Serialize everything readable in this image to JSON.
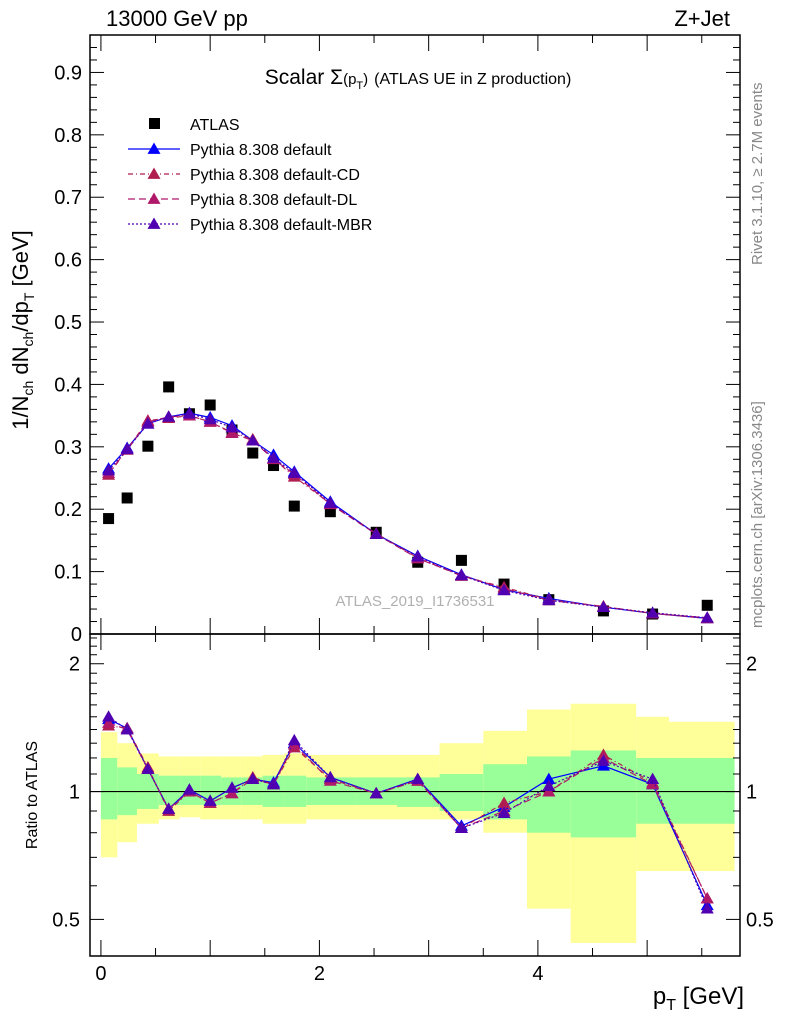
{
  "header": {
    "left": "13000 GeV pp",
    "right": "Z+Jet"
  },
  "side_labels": {
    "rivet": "Rivet 3.1.10, ≥ 2.7M events",
    "mcplots": "mcplots.cern.ch [arXiv:1306.3436]"
  },
  "watermark": "ATLAS_2019_I1736531",
  "colors": {
    "atlas": "#000000",
    "default": "#0000ff",
    "default_cd": "#b01e50",
    "default_dl": "#b0186a",
    "default_mbr": "#5000b0",
    "band_outer": "#ffff99",
    "band_inner": "#99ff99"
  },
  "chart_data": [
    {
      "type": "scatter",
      "panel": "main",
      "title_main": "Scalar Σ",
      "title_sub": "(p",
      "title_subsub": "T",
      "title_close": ")",
      "title_rest": "(ATLAS UE in Z production)",
      "ylabel_1": "1/N",
      "ylabel_2": "ch",
      "ylabel_3": " dN",
      "ylabel_4": "ch",
      "ylabel_5": "/dp",
      "ylabel_6": "T",
      "ylabel_7": " [GeV]",
      "xlim": [
        -0.1,
        5.85
      ],
      "ylim": [
        0,
        0.96
      ],
      "yticks": [
        "0",
        "0.1",
        "0.2",
        "0.3",
        "0.4",
        "0.5",
        "0.6",
        "0.7",
        "0.8",
        "0.9"
      ],
      "legend": [
        "ATLAS",
        "Pythia 8.308 default",
        "Pythia 8.308 default-CD",
        "Pythia 8.308 default-DL",
        "Pythia 8.308 default-MBR"
      ],
      "x": [
        0.07,
        0.24,
        0.43,
        0.62,
        0.81,
        1.0,
        1.2,
        1.39,
        1.58,
        1.77,
        2.1,
        2.52,
        2.9,
        3.3,
        3.69,
        4.1,
        4.6,
        5.05,
        5.55
      ],
      "series": [
        {
          "name": "ATLAS",
          "values": [
            0.185,
            0.218,
            0.301,
            0.396,
            0.353,
            0.367,
            0.327,
            0.29,
            0.27,
            0.205,
            0.196,
            0.163,
            0.115,
            0.118,
            0.08,
            0.055,
            0.037,
            0.032,
            0.046
          ]
        },
        {
          "name": "Pythia 8.308 default",
          "values": [
            0.265,
            0.298,
            0.337,
            0.348,
            0.354,
            0.347,
            0.334,
            0.31,
            0.287,
            0.26,
            0.212,
            0.16,
            0.125,
            0.095,
            0.071,
            0.057,
            0.043,
            0.033,
            0.025
          ]
        },
        {
          "name": "Pythia 8.308 default-CD",
          "values": [
            0.255,
            0.296,
            0.342,
            0.346,
            0.35,
            0.34,
            0.323,
            0.312,
            0.281,
            0.252,
            0.209,
            0.161,
            0.122,
            0.093,
            0.075,
            0.055,
            0.044,
            0.033,
            0.025
          ]
        },
        {
          "name": "Pythia 8.308 default-DL",
          "values": [
            0.258,
            0.295,
            0.34,
            0.348,
            0.35,
            0.34,
            0.322,
            0.31,
            0.28,
            0.256,
            0.208,
            0.16,
            0.121,
            0.094,
            0.073,
            0.054,
            0.044,
            0.033,
            0.026
          ]
        },
        {
          "name": "Pythia 8.308 default-MBR",
          "values": [
            0.262,
            0.296,
            0.337,
            0.348,
            0.353,
            0.344,
            0.331,
            0.31,
            0.282,
            0.258,
            0.21,
            0.16,
            0.124,
            0.094,
            0.07,
            0.054,
            0.043,
            0.034,
            0.026
          ]
        }
      ]
    },
    {
      "type": "line",
      "panel": "ratio",
      "ylabel": "Ratio to ATLAS",
      "xlabel_main": "p",
      "xlabel_sub": "T",
      "xlabel_unit": " [GeV]",
      "log_y": true,
      "ylim": [
        0.41,
        2.35
      ],
      "yticks_left": [
        "0.5",
        "1",
        "2"
      ],
      "yticks_right": [
        "0.5",
        "1",
        "2"
      ],
      "xticks": [
        "0",
        "2",
        "4"
      ],
      "x": [
        0.07,
        0.24,
        0.43,
        0.62,
        0.81,
        1.0,
        1.2,
        1.39,
        1.58,
        1.77,
        2.1,
        2.52,
        2.9,
        3.3,
        3.69,
        4.1,
        4.6,
        5.05,
        5.55
      ],
      "bins": [
        [
          0.0,
          0.15
        ],
        [
          0.15,
          0.33
        ],
        [
          0.33,
          0.53
        ],
        [
          0.53,
          0.72
        ],
        [
          0.72,
          0.91
        ],
        [
          0.91,
          1.1
        ],
        [
          1.1,
          1.29
        ],
        [
          1.29,
          1.48
        ],
        [
          1.48,
          1.68
        ],
        [
          1.68,
          1.88
        ],
        [
          1.88,
          2.33
        ],
        [
          2.33,
          2.71
        ],
        [
          2.71,
          3.1
        ],
        [
          3.1,
          3.5
        ],
        [
          3.5,
          3.9
        ],
        [
          3.9,
          4.3
        ],
        [
          4.3,
          4.9
        ],
        [
          4.9,
          5.2
        ],
        [
          5.2,
          5.8
        ]
      ],
      "band_outer": [
        [
          0.7,
          1.38
        ],
        [
          0.76,
          1.3
        ],
        [
          0.84,
          1.23
        ],
        [
          0.86,
          1.21
        ],
        [
          0.87,
          1.21
        ],
        [
          0.86,
          1.21
        ],
        [
          0.86,
          1.21
        ],
        [
          0.86,
          1.21
        ],
        [
          0.84,
          1.22
        ],
        [
          0.84,
          1.23
        ],
        [
          0.86,
          1.22
        ],
        [
          0.86,
          1.22
        ],
        [
          0.86,
          1.22
        ],
        [
          0.86,
          1.3
        ],
        [
          0.8,
          1.39
        ],
        [
          0.53,
          1.56
        ],
        [
          0.44,
          1.61
        ],
        [
          0.65,
          1.5
        ],
        [
          0.65,
          1.46
        ]
      ],
      "band_inner": [
        [
          0.86,
          1.2
        ],
        [
          0.88,
          1.14
        ],
        [
          0.91,
          1.1
        ],
        [
          0.93,
          1.09
        ],
        [
          0.93,
          1.09
        ],
        [
          0.93,
          1.09
        ],
        [
          0.93,
          1.08
        ],
        [
          0.93,
          1.08
        ],
        [
          0.92,
          1.09
        ],
        [
          0.92,
          1.09
        ],
        [
          0.93,
          1.08
        ],
        [
          0.93,
          1.08
        ],
        [
          0.92,
          1.08
        ],
        [
          0.9,
          1.1
        ],
        [
          0.86,
          1.16
        ],
        [
          0.8,
          1.21
        ],
        [
          0.78,
          1.25
        ],
        [
          0.84,
          1.2
        ],
        [
          0.84,
          1.2
        ]
      ],
      "series": [
        {
          "name": "Pythia 8.308 default",
          "values": [
            1.48,
            1.41,
            1.13,
            0.91,
            1.01,
            0.95,
            1.02,
            1.07,
            1.05,
            1.3,
            1.08,
            0.99,
            1.07,
            0.83,
            0.92,
            1.07,
            1.15,
            1.04,
            0.54
          ]
        },
        {
          "name": "Pythia 8.308 default-CD",
          "values": [
            1.43,
            1.41,
            1.14,
            0.9,
            1.0,
            0.94,
            0.99,
            1.08,
            1.04,
            1.27,
            1.07,
            0.99,
            1.06,
            0.82,
            0.94,
            1.0,
            1.22,
            1.05,
            0.56
          ]
        },
        {
          "name": "Pythia 8.308 default-DL",
          "values": [
            1.45,
            1.4,
            1.13,
            0.91,
            1.0,
            0.94,
            0.99,
            1.07,
            1.04,
            1.29,
            1.06,
            0.99,
            1.06,
            0.82,
            0.9,
            1.0,
            1.2,
            1.04,
            0.56
          ]
        },
        {
          "name": "Pythia 8.308 default-MBR",
          "values": [
            1.5,
            1.4,
            1.13,
            0.91,
            1.01,
            0.95,
            1.02,
            1.07,
            1.04,
            1.32,
            1.08,
            0.99,
            1.07,
            0.82,
            0.89,
            1.03,
            1.18,
            1.07,
            0.53
          ]
        }
      ]
    }
  ]
}
